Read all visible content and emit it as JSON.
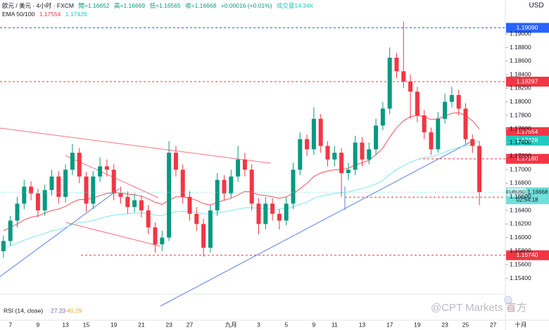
{
  "header": {
    "symbol": "欧元 / 美元 · 4小时 · FXCM",
    "open": "開=1.16652",
    "high": "高=1.16669",
    "low": "低=1.16565",
    "close": "收=1.16668",
    "change": "+0.00016 (+0.01%)",
    "volume": "成交量14.34K",
    "indicator": "EMA 50/100",
    "ema50": "1.17554",
    "ema100": "1.17428"
  },
  "chart_data": {
    "type": "candlestick",
    "currency": "USD",
    "up_color": "#089981",
    "down_color": "#f23645",
    "categories": [
      null,
      "7",
      null,
      null,
      null,
      "9",
      null,
      null,
      null,
      "13",
      null,
      null,
      "15",
      null,
      null,
      null,
      "19",
      null,
      null,
      null,
      "21",
      null,
      null,
      null,
      "23",
      null,
      null,
      "27",
      null,
      null,
      null,
      null,
      null,
      "九月",
      null,
      null,
      null,
      "3",
      null,
      null,
      null,
      "5",
      null,
      null,
      null,
      "9",
      null,
      null,
      "11",
      null,
      null,
      null,
      "13",
      null,
      null,
      null,
      "17",
      null,
      null,
      null,
      "19",
      null,
      null,
      null,
      "23",
      null,
      null,
      "25",
      null,
      null,
      null,
      "27",
      null,
      null,
      null,
      "十月"
    ],
    "open": [
      1.158,
      1.1595,
      1.1625,
      1.165,
      1.1675,
      1.1665,
      1.164,
      1.167,
      1.169,
      1.166,
      1.17,
      1.1725,
      1.169,
      1.165,
      1.169,
      1.1705,
      1.17,
      1.1665,
      1.166,
      1.1645,
      1.1655,
      1.164,
      1.1615,
      1.159,
      1.16,
      1.1725,
      1.17,
      1.166,
      1.1635,
      1.162,
      1.1585,
      1.164,
      1.1685,
      1.1665,
      1.169,
      1.1715,
      1.17,
      1.165,
      1.162,
      1.165,
      1.1635,
      1.1625,
      1.165,
      1.17,
      1.1745,
      1.173,
      1.1775,
      1.1735,
      1.1715,
      1.1725,
      1.1695,
      1.17,
      1.174,
      1.1715,
      1.173,
      1.1765,
      1.179,
      1.1865,
      1.1845,
      1.183,
      1.1815,
      1.178,
      1.1755,
      1.173,
      1.1775,
      1.18,
      1.181,
      1.179,
      1.1745,
      1.1735,
      null,
      null,
      null,
      null,
      null,
      null
    ],
    "high": [
      1.1603,
      1.1632,
      1.166,
      1.1685,
      1.1683,
      1.1672,
      1.1678,
      1.17,
      1.1698,
      1.1708,
      1.1738,
      1.1732,
      1.1697,
      1.1698,
      1.1718,
      1.1715,
      1.1708,
      1.1675,
      1.1668,
      1.1665,
      1.1662,
      1.1648,
      1.1622,
      1.161,
      1.1742,
      1.1735,
      1.1708,
      1.1668,
      1.1645,
      1.1628,
      1.1648,
      1.1695,
      1.1692,
      1.17,
      1.1735,
      1.1725,
      1.1708,
      1.1658,
      1.166,
      1.1658,
      1.1642,
      1.166,
      1.171,
      1.1755,
      1.1752,
      1.1792,
      1.1782,
      1.1742,
      1.1735,
      1.1732,
      1.171,
      1.175,
      1.1748,
      1.174,
      1.1775,
      1.18,
      1.188,
      1.1872,
      1.1918,
      1.184,
      1.1822,
      1.1788,
      1.1762,
      1.1785,
      1.1812,
      1.1822,
      1.1818,
      1.1798,
      1.1752,
      1.1742,
      null,
      null,
      null,
      null,
      null,
      null
    ],
    "low": [
      1.157,
      1.1588,
      1.1615,
      1.1642,
      1.1655,
      1.163,
      1.1632,
      1.1662,
      1.165,
      1.1652,
      1.1692,
      1.168,
      1.1638,
      1.1642,
      1.1682,
      1.169,
      1.1655,
      1.165,
      1.1635,
      1.1637,
      1.163,
      1.1605,
      1.1578,
      1.158,
      1.1595,
      1.169,
      1.165,
      1.1625,
      1.161,
      1.1572,
      1.1578,
      1.1632,
      1.1655,
      1.1658,
      1.1682,
      1.169,
      1.164,
      1.1605,
      1.1612,
      1.1625,
      1.1612,
      1.1618,
      1.1642,
      1.1692,
      1.172,
      1.1722,
      1.1725,
      1.1705,
      1.1705,
      1.166,
      1.1685,
      1.1692,
      1.1705,
      1.1708,
      1.1722,
      1.1758,
      1.1782,
      1.1835,
      1.182,
      1.1775,
      1.177,
      1.1745,
      1.1722,
      1.1725,
      1.1768,
      1.1792,
      1.178,
      1.1738,
      1.1725,
      1.1648,
      null,
      null,
      null,
      null,
      null,
      null
    ],
    "close": [
      1.1595,
      1.1625,
      1.165,
      1.1675,
      1.1665,
      1.164,
      1.167,
      1.169,
      1.166,
      1.17,
      1.1725,
      1.169,
      1.165,
      1.169,
      1.1705,
      1.17,
      1.1665,
      1.166,
      1.1645,
      1.1655,
      1.164,
      1.1615,
      1.159,
      1.16,
      1.1725,
      1.17,
      1.166,
      1.1635,
      1.162,
      1.1585,
      1.164,
      1.1685,
      1.1665,
      1.169,
      1.1715,
      1.17,
      1.165,
      1.162,
      1.165,
      1.1635,
      1.1625,
      1.165,
      1.17,
      1.1745,
      1.173,
      1.1775,
      1.1735,
      1.1715,
      1.1725,
      1.1695,
      1.17,
      1.174,
      1.1715,
      1.173,
      1.1765,
      1.179,
      1.1865,
      1.1845,
      1.183,
      1.1815,
      1.178,
      1.1755,
      1.173,
      1.1775,
      1.18,
      1.181,
      1.179,
      1.1745,
      1.1735,
      1.1667,
      null,
      null,
      null,
      null,
      null,
      null
    ],
    "overlays": [
      {
        "color": "#f7525f",
        "values": [
          1.161,
          1.1615,
          1.162,
          1.1626,
          1.163,
          1.1632,
          1.1636,
          1.164,
          1.1642,
          1.1646,
          1.1652,
          1.1656,
          1.1656,
          1.1658,
          1.1662,
          1.1665,
          1.1666,
          1.1666,
          1.1664,
          1.1663,
          1.1661,
          1.1657,
          1.1652,
          1.1649,
          1.1655,
          1.166,
          1.166,
          1.1658,
          1.1655,
          1.165,
          1.1648,
          1.1652,
          1.1655,
          1.1658,
          1.1663,
          1.1668,
          1.1667,
          1.1663,
          1.1662,
          1.166,
          1.1658,
          1.166,
          1.1665,
          1.1672,
          1.168,
          1.169,
          1.1695,
          1.1698,
          1.17,
          1.17,
          1.1702,
          1.1707,
          1.171,
          1.1714,
          1.1722,
          1.1732,
          1.1748,
          1.1762,
          1.1772,
          1.1778,
          1.178,
          1.1778,
          1.1774,
          1.1775,
          1.1779,
          1.1783,
          1.1784,
          1.178,
          1.1772,
          1.176,
          null,
          null,
          null,
          null,
          null,
          null
        ]
      },
      {
        "color": "#7ee6ef",
        "values": [
          1.1585,
          1.1588,
          1.1592,
          1.1596,
          1.16,
          1.1603,
          1.1606,
          1.161,
          1.1612,
          1.1615,
          1.1619,
          1.1622,
          1.1623,
          1.1625,
          1.1628,
          1.1631,
          1.1633,
          1.1634,
          1.1635,
          1.1636,
          1.1636,
          1.1635,
          1.1633,
          1.1632,
          1.1636,
          1.1638,
          1.1639,
          1.1638,
          1.1637,
          1.1635,
          1.1635,
          1.1637,
          1.1638,
          1.164,
          1.1642,
          1.1644,
          1.1644,
          1.1643,
          1.1643,
          1.1642,
          1.1642,
          1.1643,
          1.1645,
          1.1649,
          1.1652,
          1.1658,
          1.1661,
          1.1663,
          1.1665,
          1.1666,
          1.1667,
          1.167,
          1.1672,
          1.1675,
          1.1679,
          1.1684,
          1.1693,
          1.17,
          1.1706,
          1.1711,
          1.1715,
          1.1718,
          1.1719,
          1.1722,
          1.1726,
          1.173,
          1.1733,
          1.1735,
          1.1737,
          1.1743,
          null,
          null,
          null,
          null,
          null,
          null
        ]
      }
    ],
    "ylim": [
      1.1525,
      1.195
    ],
    "yticks": [
      {
        "value": 1.154,
        "label": "1.15400"
      },
      {
        "value": 1.156,
        "label": "1.15600"
      },
      {
        "value": 1.158,
        "label": "1.15800"
      },
      {
        "value": 1.16,
        "label": "1.16000"
      },
      {
        "value": 1.162,
        "label": "1.16200"
      },
      {
        "value": 1.164,
        "label": "1.16400"
      },
      {
        "value": 1.166,
        "label": "1.16600"
      },
      {
        "value": 1.168,
        "label": "1.16800"
      },
      {
        "value": 1.17,
        "label": "1.17000"
      },
      {
        "value": 1.172,
        "label": "1.17200"
      },
      {
        "value": 1.174,
        "label": "1.17400"
      },
      {
        "value": 1.176,
        "label": "1.17600"
      },
      {
        "value": 1.178,
        "label": "1.17800"
      },
      {
        "value": 1.18,
        "label": "1.18000"
      },
      {
        "value": 1.182,
        "label": "1.18200"
      },
      {
        "value": 1.184,
        "label": "1.18400"
      },
      {
        "value": 1.186,
        "label": "1.18600"
      },
      {
        "value": 1.188,
        "label": "1.18800"
      },
      {
        "value": 1.19,
        "label": "1.19000"
      }
    ],
    "hlines": [
      {
        "value": 1.1909,
        "label": "1.19090",
        "color": "#2962ff"
      },
      {
        "value": 1.18297,
        "label": "1.18297",
        "color": "#f23645"
      },
      {
        "value": 1.1716,
        "label": "1.17160",
        "color": "#f23645"
      },
      {
        "value": 1.16595,
        "label": "1.16595",
        "color": "#f23645"
      },
      {
        "value": 1.1574,
        "label": "1.15740",
        "color": "#f23645"
      }
    ],
    "price_labels": [
      {
        "value": 1.17554,
        "label": "1.17554",
        "color": "#f23645"
      },
      {
        "value": 1.17428,
        "label": "1.17428",
        "color": "#22c9c0"
      }
    ],
    "last": {
      "symbol": "EURUSD",
      "value": 1.16668,
      "label": "1.16668",
      "countdown": "02:54:18",
      "color": "#6fe0da"
    },
    "rsi": {
      "label": "RSI (14, close)",
      "values": [
        "27.23",
        "40.29"
      ]
    }
  },
  "watermark": "@CPT Markets 官方"
}
